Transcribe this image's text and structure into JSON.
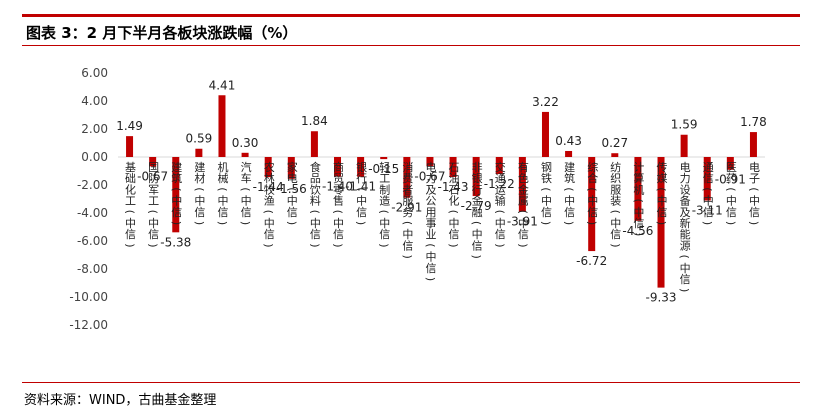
{
  "header": {
    "title": "图表 3：2 月下半月各板块涨跌幅（%）"
  },
  "footer": {
    "source": "资料来源：WIND，古曲基金整理"
  },
  "colors": {
    "bar": "#c00000",
    "accent_rule": "#c00000"
  },
  "chart_data": {
    "type": "bar",
    "title": "",
    "xlabel": "",
    "ylabel": "",
    "ylim": [
      -12,
      6
    ],
    "yticks": [
      "6.00",
      "4.00",
      "2.00",
      "0.00",
      "-2.00",
      "-4.00",
      "-6.00",
      "-8.00",
      "-10.00",
      "-12.00"
    ],
    "grid": false,
    "legend": "none",
    "categories": [
      "基础化工(中信)",
      "国防军工(中信)",
      "建筑(中信)",
      "建材(中信)",
      "机械(中信)",
      "汽车(中信)",
      "农林牧渔(中信)",
      "家电(中信)",
      "食品饮料(中信)",
      "商贸零售(中信)",
      "银行(中信)",
      "轻工制造(中信)",
      "消费者服务(中信)",
      "电力及公用事业(中信)",
      "石油石化(中信)",
      "非银行金融(中信)",
      "交通运输(中信)",
      "有色金属(中信)",
      "钢铁(中信)",
      "建筑(中信)",
      "综合(中信)",
      "纺织服装(中信)",
      "计算机(中信)",
      "传媒(中信)",
      "电力设备及新能源(中信)",
      "通信(中信)",
      "医药(中信)",
      "电子(中信)"
    ],
    "values": [
      1.49,
      -0.67,
      -5.38,
      0.59,
      4.41,
      0.3,
      -1.44,
      -1.56,
      1.84,
      -1.4,
      -1.41,
      -0.15,
      -2.91,
      -0.67,
      -1.43,
      -2.79,
      -1.22,
      -3.91,
      3.22,
      0.43,
      -6.72,
      0.27,
      -4.56,
      -9.33,
      1.59,
      -3.11,
      -0.91,
      1.78
    ],
    "value_labels": [
      "1.49",
      "-0.67",
      "-5.38",
      "0.59",
      "4.41",
      "0.30",
      "-1.44",
      "-1.56",
      "1.84",
      "-1.40",
      "-1.41",
      "-0.15",
      "-2.91",
      "-0.67",
      "-1.43",
      "-2.79",
      "-1.22",
      "-3.91",
      "3.22",
      "0.43",
      "-6.72",
      "0.27",
      "-4.56",
      "-9.33",
      "1.59",
      "-3.11",
      "-0.91",
      "1.78"
    ]
  }
}
